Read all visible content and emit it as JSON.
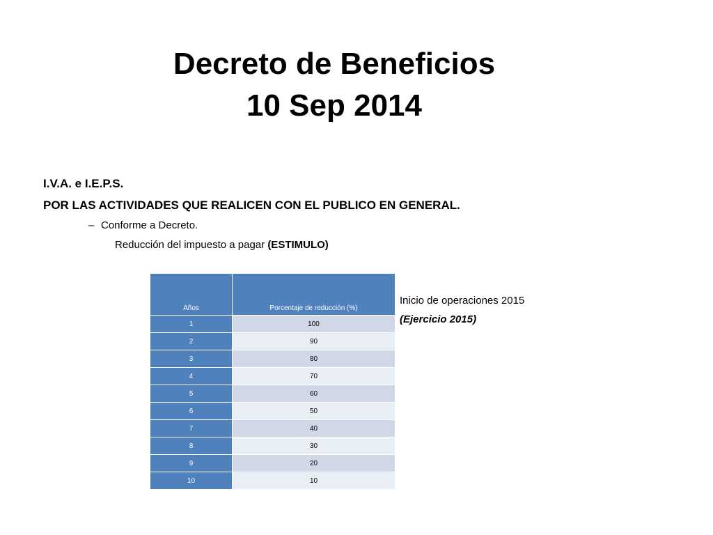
{
  "title": {
    "line1": "Decreto de Beneficios",
    "line2": "10 Sep 2014"
  },
  "body": {
    "line1": "I.V.A. e I.E.P.S.",
    "line2": "POR LAS ACTIVIDADES QUE REALICEN CON EL PUBLICO EN GENERAL.",
    "bullet_dash": "–",
    "bullet_text": "Conforme a Decreto.",
    "sub_text": "Reducción del impuesto a pagar ",
    "sub_bold": "(ESTIMULO)"
  },
  "table": {
    "header_year": "Años",
    "header_pct": "Porcentaje de reducción (%)",
    "rows": [
      {
        "year": "1",
        "pct": "100"
      },
      {
        "year": "2",
        "pct": "90"
      },
      {
        "year": "3",
        "pct": "80"
      },
      {
        "year": "4",
        "pct": "70"
      },
      {
        "year": "5",
        "pct": "60"
      },
      {
        "year": "6",
        "pct": "50"
      },
      {
        "year": "7",
        "pct": "40"
      },
      {
        "year": "8",
        "pct": "30"
      },
      {
        "year": "9",
        "pct": "20"
      },
      {
        "year": "10",
        "pct": "10"
      }
    ]
  },
  "side_note": {
    "line1": "Inicio de operaciones 2015",
    "line2": "(Ejercicio 2015)"
  }
}
